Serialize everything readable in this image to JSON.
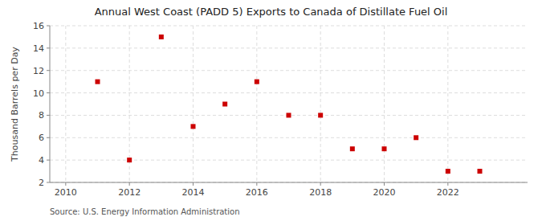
{
  "chart_data": {
    "type": "scatter",
    "title": "Annual West Coast (PADD 5) Exports to Canada of Distillate Fuel Oil",
    "ylabel": "Thousand Barrels per Day",
    "source": "Source: U.S. Energy Information Administration",
    "x": [
      2011,
      2012,
      2013,
      2014,
      2015,
      2016,
      2017,
      2018,
      2019,
      2020,
      2021,
      2022,
      2023
    ],
    "values": [
      11,
      4,
      15,
      7,
      9,
      11,
      8,
      8,
      5,
      5,
      6,
      3,
      3
    ],
    "color": "#cc0000",
    "marker": "square",
    "xlim": [
      2009.5,
      2024.5
    ],
    "xticks": [
      2010,
      2012,
      2014,
      2016,
      2018,
      2020,
      2022
    ],
    "ylim": [
      2,
      16
    ],
    "yticks": [
      2,
      4,
      6,
      8,
      10,
      12,
      14,
      16
    ],
    "grid": true
  }
}
